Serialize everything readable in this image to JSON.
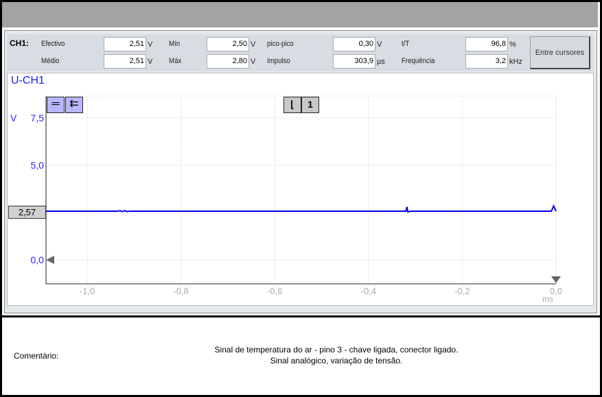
{
  "measurements": {
    "channel": "CH1:",
    "rows": [
      [
        {
          "label": "Efectivo",
          "value": "2,51",
          "unit": "V"
        },
        {
          "label": "Mín",
          "value": "2,50",
          "unit": "V"
        },
        {
          "label": "pico-pico",
          "value": "0,30",
          "unit": "V"
        },
        {
          "label": "t/T",
          "value": "96,8",
          "unit": "%"
        }
      ],
      [
        {
          "label": "Médio",
          "value": "2,51",
          "unit": "V"
        },
        {
          "label": "Máx",
          "value": "2,80",
          "unit": "V"
        },
        {
          "label": "Impulso",
          "value": "303,9",
          "unit": "µs"
        },
        {
          "label": "Frequência",
          "value": "3,2",
          "unit": "kHz"
        }
      ]
    ],
    "cursors_button": "Entre cursores"
  },
  "plot": {
    "title": "U-CH1",
    "cursor_value": "2,57",
    "trigger_channel": "1",
    "icons": [
      "horizontal-lines-icon",
      "arrow-left-lines-icon",
      "falling-edge-trigger-icon"
    ],
    "trace_color": "#0000ee"
  },
  "chart_data": {
    "type": "line",
    "ylabel": "V",
    "xlabel": "ms",
    "xlim": [
      -1.088,
      0.0
    ],
    "ylim": [
      -1.27,
      8.66
    ],
    "xticks": [
      "-1,0",
      "-0,8",
      "-0,6",
      "-0,4",
      "-0,2",
      "0,0"
    ],
    "yticks": [
      "0,0",
      "5,0",
      "7,5"
    ],
    "grid": true,
    "series": [
      {
        "x": [
          -1.088,
          -0.935,
          -0.93,
          -0.925,
          -0.92,
          -0.915,
          -0.91,
          -0.32,
          -0.318,
          -0.316,
          -0.31,
          -0.01,
          -0.005,
          0.0
        ],
        "y": [
          2.57,
          2.57,
          2.6,
          2.55,
          2.6,
          2.55,
          2.57,
          2.57,
          2.8,
          2.53,
          2.57,
          2.57,
          2.85,
          2.57
        ]
      }
    ]
  },
  "comment": {
    "label": "Comentário:",
    "line1": "Sinal de temperatura do ar - pino 3 - chave ligada, conector ligado.",
    "line2": "Sinal analógico, variação de tensão."
  }
}
